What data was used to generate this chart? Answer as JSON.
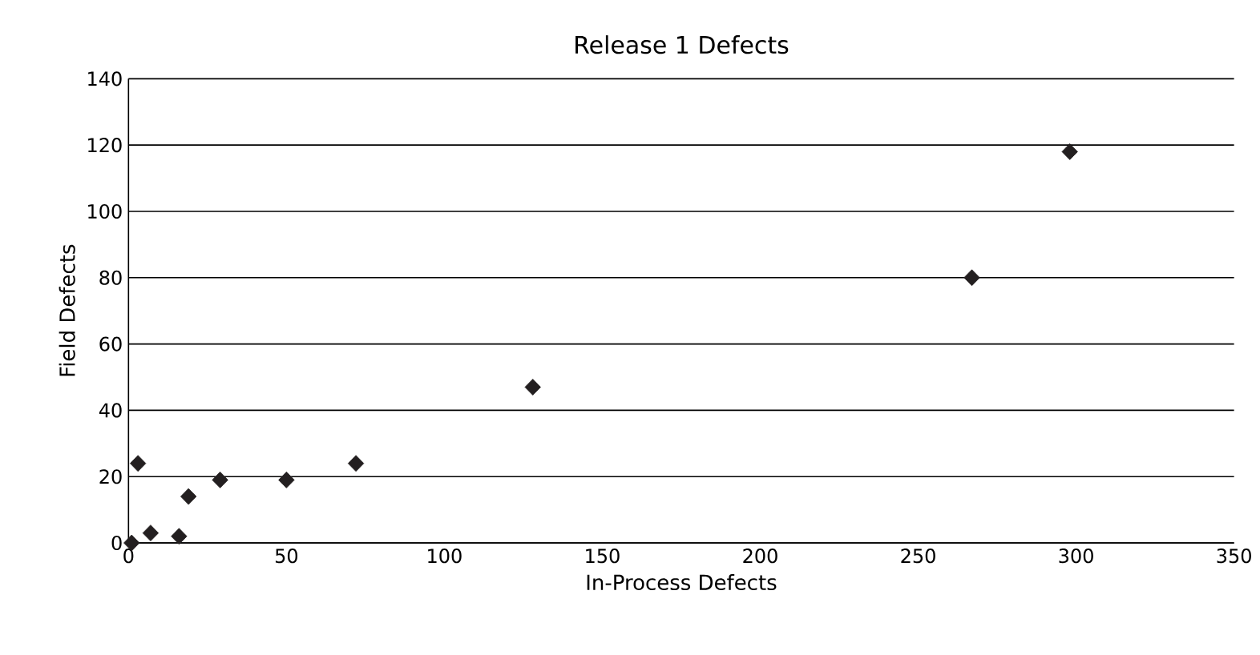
{
  "chart_data": {
    "type": "scatter",
    "title": "Release 1 Defects",
    "xlabel": "In-Process Defects",
    "ylabel": "Field Defects",
    "x": [
      1,
      3,
      7,
      16,
      19,
      29,
      50,
      72,
      128,
      267,
      298
    ],
    "values": [
      0,
      24,
      3,
      2,
      14,
      19,
      19,
      24,
      47,
      80,
      118
    ],
    "color": "#231f20",
    "marker": "diamond",
    "xlim": [
      0,
      350
    ],
    "xticks": [
      0,
      50,
      100,
      150,
      200,
      250,
      300,
      350
    ],
    "ylim": [
      0,
      140
    ],
    "yticks": [
      0,
      20,
      40,
      60,
      80,
      100,
      120,
      140
    ],
    "grid": "y"
  }
}
